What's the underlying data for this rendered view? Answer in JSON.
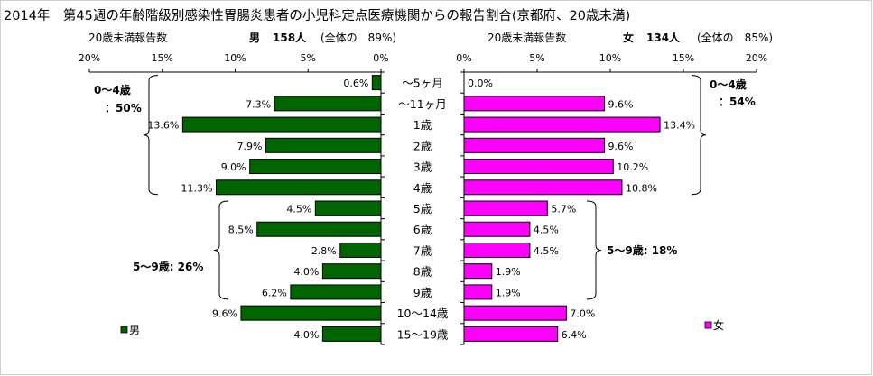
{
  "title": "2014年　第45週の年齢階級別感染性胃腸炎患者の小児科定点医療機関からの報告割合(京都府、20歳未満)",
  "male_header": {
    "label": "20歳未満報告数",
    "sex": "男",
    "count": "158人",
    "share": "(全体の　89%)"
  },
  "female_header": {
    "label": "20歳未満報告数",
    "sex": "女",
    "count": "134人",
    "share": "(全体の　85%)"
  },
  "colors": {
    "male": "#006400",
    "female": "#ff00ff",
    "axis": "#000000"
  },
  "chart_data": [
    {
      "type": "bar",
      "orientation": "horizontal",
      "direction": "right-to-left",
      "categories": [
        "〜5ヶ月",
        "〜11ヶ月",
        "1歳",
        "2歳",
        "3歳",
        "4歳",
        "5歳",
        "6歳",
        "7歳",
        "8歳",
        "9歳",
        "10〜14歳",
        "15〜19歳"
      ],
      "series": [
        {
          "name": "男",
          "values": [
            0.6,
            7.3,
            13.6,
            7.9,
            9.0,
            11.3,
            4.5,
            8.5,
            2.8,
            4.0,
            6.2,
            9.6,
            4.0
          ]
        }
      ],
      "data_labels": [
        "0.6%",
        "7.3%",
        "13.6%",
        "7.9%",
        "9.0%",
        "11.3%",
        "4.5%",
        "8.5%",
        "2.8%",
        "4.0%",
        "6.2%",
        "9.6%",
        "4.0%"
      ],
      "xlim": [
        0,
        20
      ],
      "xticks": [
        "20%",
        "15%",
        "10%",
        "5%",
        "0%"
      ],
      "legend": "bottom-left",
      "grid": false,
      "annotations": [
        {
          "text_line1": "0〜4歳",
          "text_line2": "：50%",
          "from": "〜5ヶ月",
          "to": "4歳"
        },
        {
          "text": "5〜9歳: 26%",
          "from": "5歳",
          "to": "9歳"
        }
      ]
    },
    {
      "type": "bar",
      "orientation": "horizontal",
      "direction": "left-to-right",
      "categories": [
        "〜5ヶ月",
        "〜11ヶ月",
        "1歳",
        "2歳",
        "3歳",
        "4歳",
        "5歳",
        "6歳",
        "7歳",
        "8歳",
        "9歳",
        "10〜14歳",
        "15〜19歳"
      ],
      "series": [
        {
          "name": "女",
          "values": [
            0.0,
            9.6,
            13.4,
            9.6,
            10.2,
            10.8,
            5.7,
            4.5,
            4.5,
            1.9,
            1.9,
            7.0,
            6.4
          ]
        }
      ],
      "data_labels": [
        "0.0%",
        "9.6%",
        "13.4%",
        "9.6%",
        "10.2%",
        "10.8%",
        "5.7%",
        "4.5%",
        "4.5%",
        "1.9%",
        "1.9%",
        "7.0%",
        "6.4%"
      ],
      "xlim": [
        0,
        20
      ],
      "xticks": [
        "0%",
        "5%",
        "10%",
        "15%",
        "20%"
      ],
      "legend": "bottom-right",
      "grid": false,
      "annotations": [
        {
          "text_line1": "0〜4歳",
          "text_line2": "：54%",
          "from": "〜5ヶ月",
          "to": "4歳"
        },
        {
          "text": "5〜9歳: 18%",
          "from": "5歳",
          "to": "9歳"
        }
      ]
    }
  ]
}
